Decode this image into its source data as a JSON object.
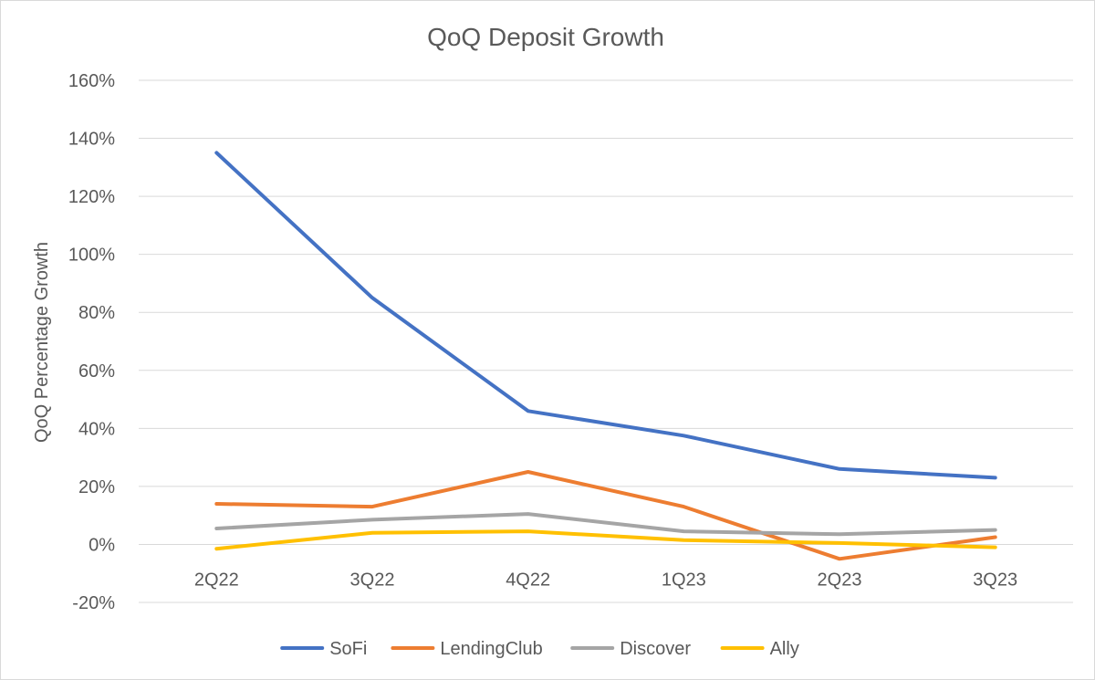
{
  "chart_data": {
    "type": "line",
    "title": "QoQ Deposit Growth",
    "xlabel": "",
    "ylabel": "QoQ Percentage Growth",
    "categories": [
      "2Q22",
      "3Q22",
      "4Q22",
      "1Q23",
      "2Q23",
      "3Q23"
    ],
    "ylim": [
      -20,
      160
    ],
    "yticks": [
      -20,
      0,
      20,
      40,
      60,
      80,
      100,
      120,
      140,
      160
    ],
    "ytick_labels": [
      "-20%",
      "0%",
      "20%",
      "40%",
      "60%",
      "80%",
      "100%",
      "120%",
      "140%",
      "160%"
    ],
    "grid": true,
    "legend_position": "bottom",
    "series": [
      {
        "name": "SoFi",
        "color": "#4472c4",
        "values": [
          135,
          85,
          46,
          37.5,
          26,
          23
        ]
      },
      {
        "name": "LendingClub",
        "color": "#ed7d31",
        "values": [
          14,
          13,
          25,
          13,
          -5,
          2.5
        ]
      },
      {
        "name": "Discover",
        "color": "#a5a5a5",
        "values": [
          5.5,
          8.5,
          10.5,
          4.5,
          3.5,
          5
        ]
      },
      {
        "name": "Ally",
        "color": "#ffc000",
        "values": [
          -1.5,
          4,
          4.5,
          1.5,
          0.5,
          -1
        ]
      }
    ]
  }
}
